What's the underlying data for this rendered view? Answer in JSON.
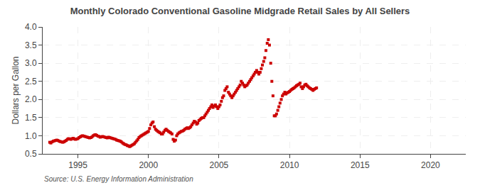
{
  "chart_data": {
    "type": "scatter",
    "title": "Monthly Colorado Conventional Gasoline Midgrade Retail Sales by All Sellers",
    "ylabel": "Dollars per Gallon",
    "annotations": [
      "Source: U.S. Energy Information Administration"
    ],
    "color": "#cc0000",
    "marker": "square",
    "grid": true,
    "xlim": [
      1992.5,
      2022.5
    ],
    "xticks": [
      1995,
      2000,
      2005,
      2010,
      2015,
      2020
    ],
    "ylim": [
      0.5,
      4.0
    ],
    "yticks": [
      0.5,
      {
        "value": 1.0,
        "label": "1.0"
      },
      1.5,
      {
        "value": 2.0,
        "label": "2.0"
      },
      2.5,
      {
        "value": 3.0,
        "label": "3.0"
      },
      3.5,
      {
        "value": 4.0,
        "label": "4.0"
      }
    ],
    "x": [
      1993.0,
      1993.08,
      1993.17,
      1993.25,
      1993.33,
      1993.42,
      1993.5,
      1993.58,
      1993.67,
      1993.75,
      1993.83,
      1993.92,
      1994.0,
      1994.08,
      1994.17,
      1994.25,
      1994.33,
      1994.42,
      1994.5,
      1994.58,
      1994.67,
      1994.75,
      1994.83,
      1994.92,
      1995.0,
      1995.08,
      1995.17,
      1995.25,
      1995.33,
      1995.42,
      1995.5,
      1995.58,
      1995.67,
      1995.75,
      1995.83,
      1995.92,
      1996.0,
      1996.08,
      1996.17,
      1996.25,
      1996.33,
      1996.42,
      1996.5,
      1996.58,
      1996.67,
      1996.75,
      1996.83,
      1996.92,
      1997.0,
      1997.08,
      1997.17,
      1997.25,
      1997.33,
      1997.42,
      1997.5,
      1997.58,
      1997.67,
      1997.75,
      1997.83,
      1997.92,
      1998.0,
      1998.08,
      1998.17,
      1998.25,
      1998.33,
      1998.42,
      1998.5,
      1998.58,
      1998.67,
      1998.75,
      1998.83,
      1998.92,
      1999.0,
      1999.08,
      1999.17,
      1999.25,
      1999.33,
      1999.42,
      1999.5,
      1999.58,
      1999.67,
      1999.75,
      1999.83,
      1999.92,
      2000.0,
      2000.08,
      2000.17,
      2000.25,
      2000.33,
      2000.42,
      2000.5,
      2000.58,
      2000.67,
      2000.75,
      2000.83,
      2000.92,
      2001.0,
      2001.08,
      2001.17,
      2001.25,
      2001.33,
      2001.42,
      2001.5,
      2001.58,
      2001.67,
      2001.75,
      2001.83,
      2001.92,
      2002.0,
      2002.08,
      2002.17,
      2002.25,
      2002.33,
      2002.42,
      2002.5,
      2002.58,
      2002.67,
      2002.75,
      2002.83,
      2002.92,
      2003.0,
      2003.08,
      2003.17,
      2003.25,
      2003.33,
      2003.42,
      2003.5,
      2003.58,
      2003.67,
      2003.75,
      2003.83,
      2003.92,
      2004.0,
      2004.08,
      2004.17,
      2004.25,
      2004.33,
      2004.42,
      2004.5,
      2004.58,
      2004.67,
      2004.75,
      2004.83,
      2004.92,
      2005.0,
      2005.08,
      2005.17,
      2005.25,
      2005.33,
      2005.42,
      2005.5,
      2005.58,
      2005.67,
      2005.75,
      2005.83,
      2005.92,
      2006.0,
      2006.08,
      2006.17,
      2006.25,
      2006.33,
      2006.42,
      2006.5,
      2006.58,
      2006.67,
      2006.75,
      2006.83,
      2006.92,
      2007.0,
      2007.08,
      2007.17,
      2007.25,
      2007.33,
      2007.42,
      2007.5,
      2007.58,
      2007.67,
      2007.75,
      2007.83,
      2007.92,
      2008.0,
      2008.08,
      2008.17,
      2008.25,
      2008.33,
      2008.42,
      2008.5,
      2008.58,
      2008.67,
      2008.75,
      2008.83,
      2008.92,
      2009.0,
      2009.08,
      2009.17,
      2009.25,
      2009.33,
      2009.42,
      2009.5,
      2009.58,
      2009.67,
      2009.75,
      2009.83,
      2009.92,
      2010.0,
      2010.08,
      2010.17,
      2010.25,
      2010.33,
      2010.42,
      2010.5,
      2010.58,
      2010.67,
      2010.75,
      2010.83,
      2010.92,
      2011.0,
      2011.08,
      2011.17,
      2011.25,
      2011.33,
      2011.42,
      2011.5,
      2011.58,
      2011.67,
      2011.75,
      2011.83,
      2011.92
    ],
    "values": [
      0.82,
      0.8,
      0.83,
      0.85,
      0.86,
      0.87,
      0.88,
      0.87,
      0.85,
      0.84,
      0.83,
      0.82,
      0.83,
      0.85,
      0.87,
      0.9,
      0.92,
      0.91,
      0.9,
      0.92,
      0.93,
      0.91,
      0.9,
      0.91,
      0.92,
      0.95,
      0.97,
      0.99,
      1.0,
      0.99,
      0.98,
      0.97,
      0.96,
      0.95,
      0.94,
      0.95,
      0.97,
      1.0,
      1.02,
      1.03,
      1.01,
      0.99,
      0.98,
      0.96,
      0.97,
      0.98,
      0.97,
      0.96,
      0.95,
      0.94,
      0.96,
      0.95,
      0.94,
      0.93,
      0.92,
      0.91,
      0.9,
      0.88,
      0.87,
      0.86,
      0.85,
      0.83,
      0.8,
      0.78,
      0.76,
      0.75,
      0.73,
      0.72,
      0.7,
      0.72,
      0.74,
      0.76,
      0.78,
      0.82,
      0.86,
      0.9,
      0.95,
      0.98,
      1.0,
      1.02,
      1.04,
      1.06,
      1.08,
      1.1,
      1.12,
      1.2,
      1.3,
      1.35,
      1.38,
      1.25,
      1.18,
      1.15,
      1.12,
      1.1,
      1.08,
      1.05,
      1.05,
      1.1,
      1.15,
      1.18,
      1.15,
      1.12,
      1.1,
      1.08,
      1.05,
      0.9,
      0.85,
      0.88,
      1.0,
      1.05,
      1.08,
      1.1,
      1.12,
      1.13,
      1.15,
      1.18,
      1.2,
      1.22,
      1.2,
      1.22,
      1.25,
      1.3,
      1.35,
      1.4,
      1.38,
      1.32,
      1.35,
      1.42,
      1.45,
      1.48,
      1.5,
      1.5,
      1.55,
      1.6,
      1.65,
      1.7,
      1.75,
      1.8,
      1.85,
      1.78,
      1.82,
      1.85,
      1.8,
      1.75,
      1.8,
      1.85,
      1.95,
      2.05,
      2.1,
      2.25,
      2.3,
      2.35,
      2.2,
      2.15,
      2.1,
      2.05,
      2.1,
      2.15,
      2.2,
      2.25,
      2.3,
      2.35,
      2.4,
      2.5,
      2.45,
      2.4,
      2.35,
      2.38,
      2.4,
      2.45,
      2.5,
      2.55,
      2.6,
      2.65,
      2.7,
      2.75,
      2.8,
      2.75,
      2.7,
      2.75,
      2.85,
      2.95,
      3.05,
      3.15,
      3.35,
      3.55,
      3.65,
      3.5,
      3.0,
      2.5,
      2.1,
      1.55,
      1.55,
      1.6,
      1.7,
      1.8,
      1.9,
      2.0,
      2.1,
      2.15,
      2.2,
      2.15,
      2.18,
      2.2,
      2.22,
      2.25,
      2.28,
      2.3,
      2.32,
      2.35,
      2.38,
      2.4,
      2.42,
      2.45,
      2.35,
      2.3,
      2.35,
      2.4,
      2.42,
      2.38,
      2.35,
      2.32,
      2.3,
      2.28,
      2.25,
      2.28,
      2.3,
      2.32
    ]
  }
}
